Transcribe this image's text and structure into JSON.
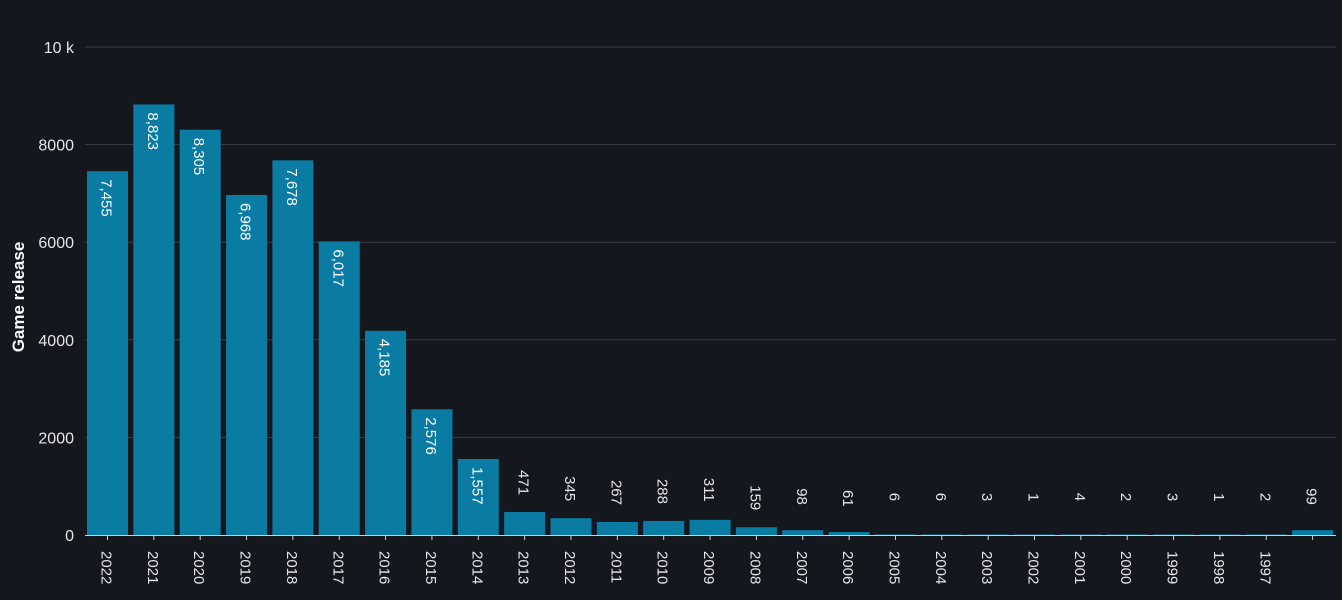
{
  "chart_data": {
    "type": "bar",
    "ylabel": "Game release",
    "ylim": [
      0,
      10000
    ],
    "y_ticks": [
      {
        "value": 0,
        "label": "0"
      },
      {
        "value": 2000,
        "label": "2000"
      },
      {
        "value": 4000,
        "label": "4000"
      },
      {
        "value": 6000,
        "label": "6000"
      },
      {
        "value": 8000,
        "label": "8000"
      },
      {
        "value": 10000,
        "label": "10 k"
      }
    ],
    "grid": true,
    "colors": {
      "bar": "#0a7ca3",
      "background": "#14171e",
      "grid": "#3a3e46"
    },
    "categories": [
      "2022",
      "2021",
      "2020",
      "2019",
      "2018",
      "2017",
      "2016",
      "2015",
      "2014",
      "2013",
      "2012",
      "2011",
      "2010",
      "2009",
      "2008",
      "2007",
      "2006",
      "2005",
      "2004",
      "2003",
      "2002",
      "2001",
      "2000",
      "1999",
      "1998",
      "1997",
      ""
    ],
    "values": [
      7455,
      8823,
      8305,
      6968,
      7678,
      6017,
      4185,
      2576,
      1557,
      471,
      345,
      267,
      288,
      311,
      159,
      98,
      61,
      6,
      6,
      3,
      1,
      4,
      2,
      3,
      1,
      2,
      99
    ],
    "data_labels": [
      "7,455",
      "8,823",
      "8,305",
      "6,968",
      "7,678",
      "6,017",
      "4,185",
      "2,576",
      "1,557",
      "471",
      "345",
      "267",
      "288",
      "311",
      "159",
      "98",
      "61",
      "6",
      "6",
      "3",
      "1",
      "4",
      "2",
      "3",
      "1",
      "2",
      "99"
    ]
  }
}
